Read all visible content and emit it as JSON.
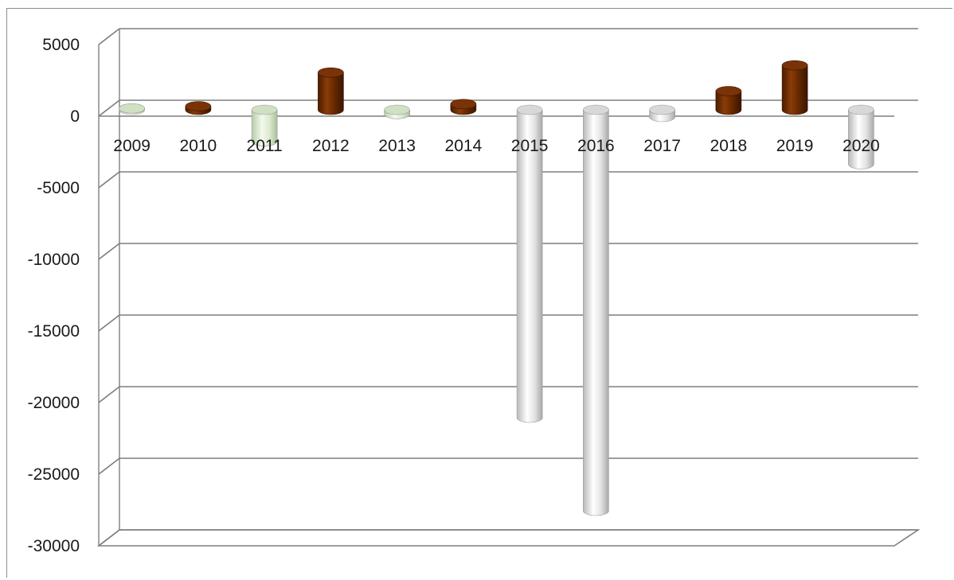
{
  "chart_data": {
    "type": "bar",
    "categories": [
      "2009",
      "2010",
      "2011",
      "2012",
      "2013",
      "2014",
      "2015",
      "2016",
      "2017",
      "2018",
      "2019",
      "2020"
    ],
    "values": [
      100,
      250,
      -2200,
      2600,
      -300,
      400,
      -21500,
      -28000,
      -500,
      1300,
      3100,
      -3800
    ],
    "bar_colors": [
      "#c9dbc0",
      "#6b2b00",
      "#e4f0d8",
      "#6b2b00",
      "#dfead2",
      "#6b2b00",
      "#e8e8e8",
      "#e8e8e8",
      "#e8e8e8",
      "#6b2b00",
      "#6b2b00",
      "#e8e8e8"
    ],
    "ylim": [
      -30000,
      5000
    ],
    "yticks": [
      "5000",
      "0",
      "-5000",
      "-10000",
      "-15000",
      "-20000",
      "-25000",
      "-30000"
    ],
    "ytick_values": [
      5000,
      0,
      -5000,
      -10000,
      -15000,
      -20000,
      -25000,
      -30000
    ],
    "grid": true,
    "title": "",
    "xlabel": "",
    "ylabel": "",
    "style": "3d-cylinder"
  }
}
